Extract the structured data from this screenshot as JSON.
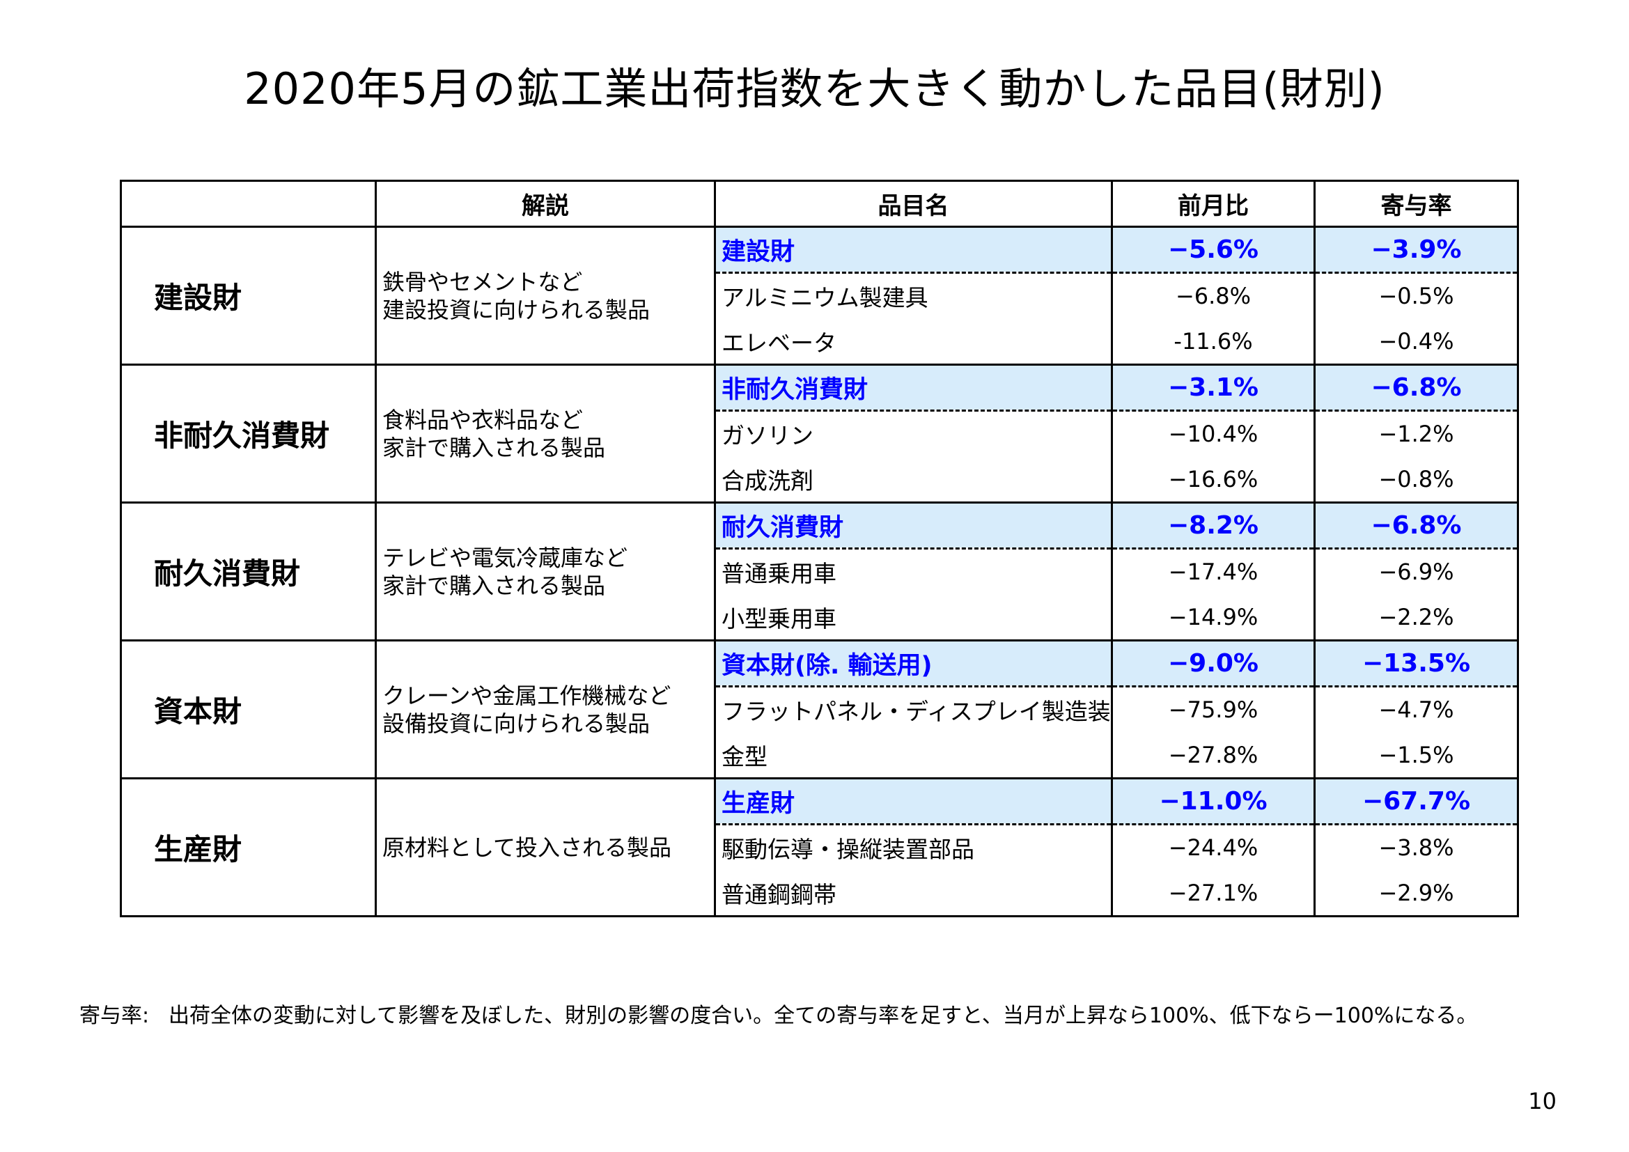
{
  "title": "2020年5月の鉱工業出荷指数を大きく動かした品目(財別)",
  "headers": [
    "",
    "解説",
    "品目名",
    "前月比",
    "寄与率"
  ],
  "groups": [
    {
      "category": "建設財",
      "description": [
        "鉄骨やセメントなど",
        "建設投資に向けられる製品"
      ],
      "summary": {
        "name": "建設財",
        "mom": "−5.6%",
        "contrib": "−3.9%"
      },
      "items": [
        {
          "name": "アルミニウム製建具",
          "mom": "−6.8%",
          "contrib": "−0.5%"
        },
        {
          "name": "エレベータ",
          "mom": "-11.6%",
          "contrib": "−0.4%"
        }
      ]
    },
    {
      "category": "非耐久消費財",
      "description": [
        "食料品や衣料品など",
        "家計で購入される製品"
      ],
      "summary": {
        "name": "非耐久消費財",
        "mom": "−3.1%",
        "contrib": "−6.8%"
      },
      "items": [
        {
          "name": "ガソリン",
          "mom": "−10.4%",
          "contrib": "−1.2%"
        },
        {
          "name": "合成洗剤",
          "mom": "−16.6%",
          "contrib": "−0.8%"
        }
      ]
    },
    {
      "category": "耐久消費財",
      "description": [
        "テレビや電気冷蔵庫など",
        "家計で購入される製品"
      ],
      "summary": {
        "name": "耐久消費財",
        "mom": "−8.2%",
        "contrib": "−6.8%"
      },
      "items": [
        {
          "name": "普通乗用車",
          "mom": "−17.4%",
          "contrib": "−6.9%"
        },
        {
          "name": "小型乗用車",
          "mom": "−14.9%",
          "contrib": "−2.2%"
        }
      ]
    },
    {
      "category": "資本財",
      "description": [
        "クレーンや金属工作機械など",
        "設備投資に向けられる製品"
      ],
      "summary": {
        "name": "資本財(除. 輸送用)",
        "mom": "−9.0%",
        "contrib": "−13.5%"
      },
      "items": [
        {
          "name": "フラットパネル・ディスプレイ製造装置",
          "mom": "−75.9%",
          "contrib": "−4.7%"
        },
        {
          "name": "金型",
          "mom": "−27.8%",
          "contrib": "−1.5%"
        }
      ]
    },
    {
      "category": "生産財",
      "description": [
        "原材料として投入される製品"
      ],
      "summary": {
        "name": "生産財",
        "mom": "−11.0%",
        "contrib": "−67.7%"
      },
      "items": [
        {
          "name": "駆動伝導・操縦装置部品",
          "mom": "−24.4%",
          "contrib": "−3.8%"
        },
        {
          "name": "普通鋼鋼帯",
          "mom": "−27.1%",
          "contrib": "−2.9%"
        }
      ]
    }
  ],
  "footnote": {
    "label": "寄与率:",
    "text": "出荷全体の変動に対して影響を及ぼした、財別の影響の度合い。全ての寄与率を足すと、当月が上昇なら100%、低下ならー100%になる。"
  },
  "page_number": "10",
  "colors": {
    "summary_bg": "#d7ecfb",
    "summary_text": "#0000ff"
  }
}
